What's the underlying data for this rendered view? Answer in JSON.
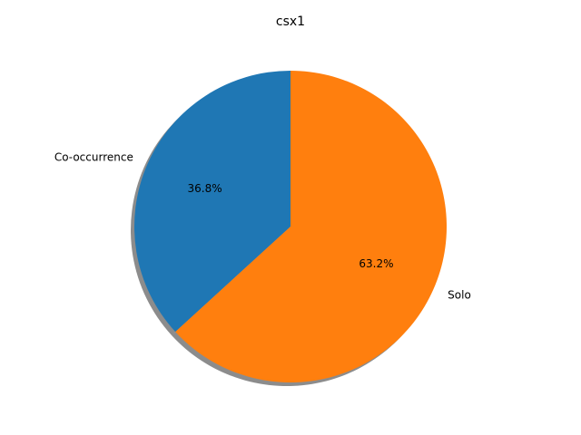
{
  "chart_data": {
    "type": "pie",
    "title": "csx1",
    "slices": [
      {
        "label": "Co-occurrence",
        "value": 36.8,
        "value_label": "36.8%",
        "color": "#1f77b4"
      },
      {
        "label": "Solo",
        "value": 63.2,
        "value_label": "63.2%",
        "color": "#ff7f0e"
      }
    ],
    "start_angle_deg": 90,
    "direction": "counterclockwise",
    "shadow": true
  }
}
